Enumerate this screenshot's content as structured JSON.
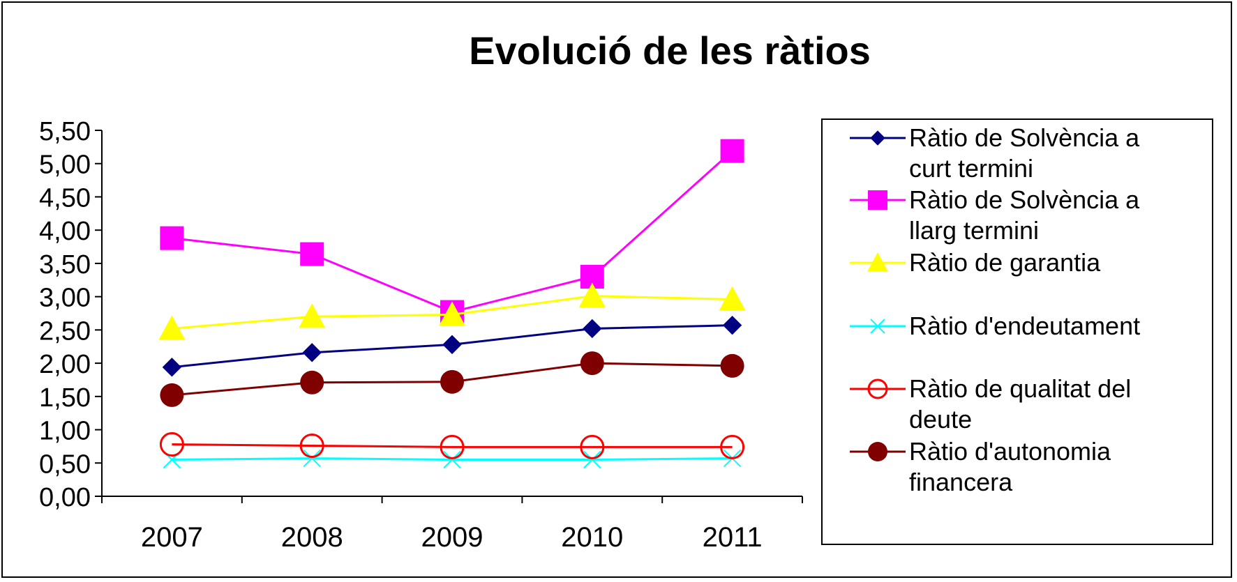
{
  "chart_data": {
    "type": "line",
    "title": "Evolució de les ràtios",
    "xlabel": "",
    "ylabel": "",
    "categories": [
      "2007",
      "2008",
      "2009",
      "2010",
      "2011"
    ],
    "ylim": [
      0,
      5.5
    ],
    "yticks": [
      "0,00",
      "0,50",
      "1,00",
      "1,50",
      "2,00",
      "2,50",
      "3,00",
      "3,50",
      "4,00",
      "4,50",
      "5,00",
      "5,50"
    ],
    "grid": false,
    "legend_position": "right",
    "series": [
      {
        "name": "Ràtio de Solvència a curt termini",
        "legend_lines": [
          "Ràtio de Solvència a",
          "curt termini"
        ],
        "color": "#000080",
        "marker": "diamond",
        "values": [
          1.94,
          2.16,
          2.28,
          2.52,
          2.57
        ]
      },
      {
        "name": "Ràtio de Solvència a llarg termini",
        "legend_lines": [
          "Ràtio de Solvència a",
          "llarg termini"
        ],
        "color": "#FF00FF",
        "marker": "square",
        "values": [
          3.88,
          3.64,
          2.77,
          3.3,
          5.19
        ]
      },
      {
        "name": "Ràtio de garantia",
        "legend_lines": [
          "Ràtio de garantia"
        ],
        "color": "#FFFF00",
        "marker": "triangle",
        "values": [
          2.52,
          2.7,
          2.73,
          3.01,
          2.96
        ]
      },
      {
        "name": "Ràtio d'endeutament",
        "legend_lines": [
          "Ràtio d'endeutament"
        ],
        "color": "#00FFFF",
        "marker": "x",
        "values": [
          0.55,
          0.57,
          0.55,
          0.55,
          0.57
        ]
      },
      {
        "name": "Ràtio de qualitat del deute",
        "legend_lines": [
          "Ràtio de qualitat del",
          "deute"
        ],
        "color": "#FF0000",
        "marker": "circle-open",
        "values": [
          0.78,
          0.76,
          0.74,
          0.74,
          0.74
        ]
      },
      {
        "name": "Ràtio d'autonomia financera",
        "legend_lines": [
          "Ràtio d'autonomia",
          "financera"
        ],
        "color": "#800000",
        "marker": "circle",
        "values": [
          1.52,
          1.71,
          1.72,
          2.0,
          1.96
        ]
      }
    ]
  }
}
